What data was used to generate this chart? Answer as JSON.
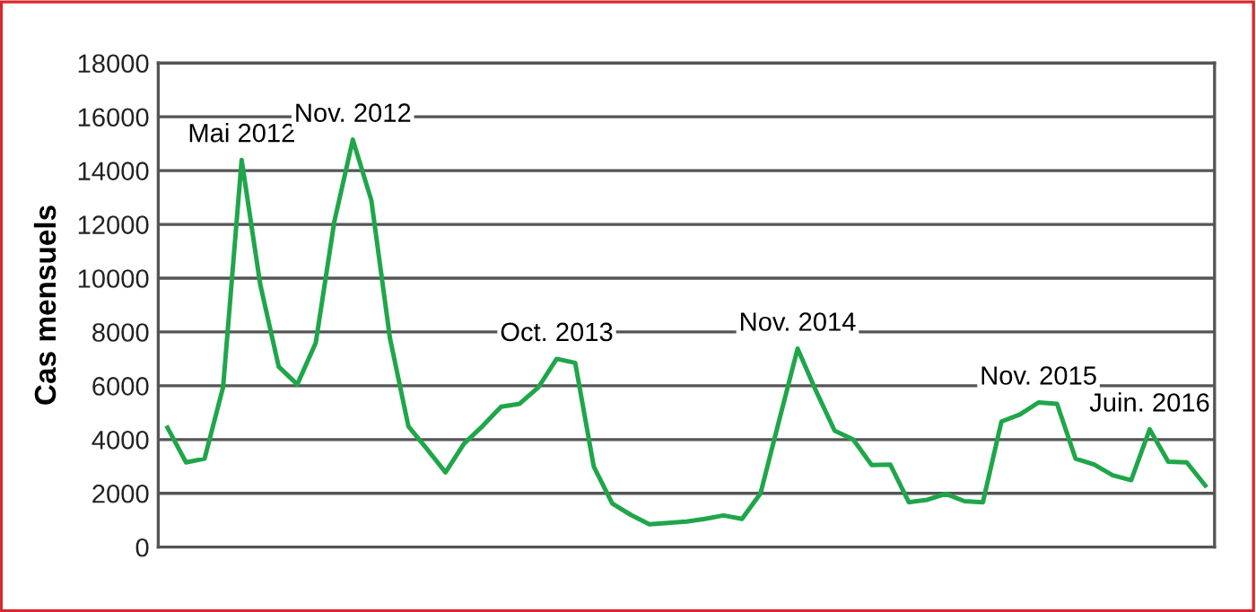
{
  "chart_data": {
    "type": "line",
    "ylabel": "Cas mensuels",
    "categories": [
      null,
      null,
      null,
      null,
      null,
      null,
      null,
      null,
      null,
      null,
      null,
      null,
      null,
      null,
      null,
      null,
      null,
      null,
      null,
      null,
      null,
      null,
      null,
      null,
      null,
      null,
      null,
      null,
      null,
      null,
      null,
      null,
      null,
      null,
      null,
      null,
      null,
      null,
      null,
      null,
      null,
      null,
      null,
      null,
      null,
      null,
      null,
      null,
      null,
      null,
      null,
      null,
      null,
      null,
      null,
      null,
      null
    ],
    "series": [
      {
        "color": "#1fa64a",
        "values": [
          4440,
          3150,
          3290,
          5950,
          14400,
          9780,
          6710,
          6050,
          7600,
          12100,
          15150,
          12890,
          7780,
          4490,
          3650,
          2780,
          3850,
          4500,
          5220,
          5330,
          5930,
          7000,
          6850,
          3000,
          1620,
          1200,
          850,
          900,
          950,
          1050,
          1180,
          1050,
          2000,
          4700,
          7380,
          5800,
          4330,
          4000,
          3050,
          3070,
          1670,
          1760,
          1980,
          1710,
          1670,
          4670,
          4930,
          5380,
          5330,
          3290,
          3070,
          2670,
          2490,
          4380,
          3180,
          3150,
          2290
        ]
      }
    ],
    "ylim": [
      0,
      18000
    ],
    "yticks": [
      0,
      2000,
      4000,
      6000,
      8000,
      10000,
      12000,
      14000,
      16000,
      18000
    ],
    "grid": "y",
    "marker": "none",
    "line_style": "solid",
    "tick_labels": "y",
    "annotations": [
      {
        "text": "Mai 2012",
        "y": 14400
      },
      {
        "text": "Nov. 2012",
        "y": 15150
      },
      {
        "text": "Oct. 2013",
        "y": 7000
      },
      {
        "text": "Nov. 2014",
        "y": 7380
      },
      {
        "text": "Nov. 2015",
        "y": 5380
      },
      {
        "text": "Juin. 2016",
        "y": 4380
      }
    ]
  }
}
